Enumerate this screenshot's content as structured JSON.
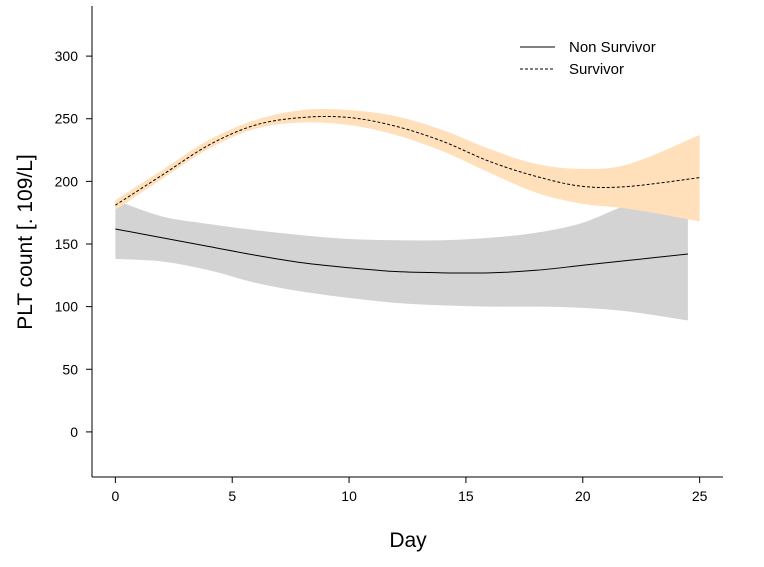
{
  "chart_data": {
    "type": "line",
    "xlabel": "Day",
    "ylabel": "PLT count [. 109/L]",
    "xlim": [
      -1,
      26
    ],
    "ylim": [
      -36,
      340
    ],
    "x_ticks": [
      0,
      5,
      10,
      15,
      20,
      25
    ],
    "y_ticks": [
      0,
      50,
      100,
      150,
      200,
      250,
      300
    ],
    "grid": false,
    "legend_position": "top-right",
    "series": [
      {
        "name": "Non Survivor",
        "line_style": "solid",
        "line_color": "#000000",
        "band_color": "#d3d3d3",
        "x": [
          0,
          2,
          4,
          6,
          8,
          10,
          12,
          14,
          16,
          18,
          20,
          22,
          24.5
        ],
        "y": [
          162,
          155,
          148,
          141,
          135,
          131,
          128,
          127,
          127,
          129,
          133,
          137,
          142
        ],
        "lower": [
          138,
          136,
          129,
          119,
          112,
          107,
          103,
          101,
          100,
          100,
          99,
          96,
          89
        ],
        "upper": [
          185,
          172,
          166,
          161,
          157,
          154,
          153,
          153,
          155,
          159,
          167,
          182,
          196
        ]
      },
      {
        "name": "Survivor",
        "line_style": "dashed",
        "line_color": "#000000",
        "band_color": "#ffe0bb",
        "x": [
          0,
          2,
          4,
          6,
          8,
          10,
          12,
          14,
          16,
          18,
          20,
          22,
          25
        ],
        "y": [
          181,
          205,
          229,
          245,
          251,
          251,
          244,
          232,
          216,
          204,
          196,
          196,
          203
        ],
        "lower": [
          177,
          202,
          226,
          242,
          247,
          245,
          237,
          224,
          207,
          191,
          182,
          178,
          168
        ],
        "upper": [
          185,
          209,
          233,
          249,
          257,
          257,
          252,
          241,
          226,
          214,
          210,
          214,
          237
        ]
      }
    ]
  }
}
